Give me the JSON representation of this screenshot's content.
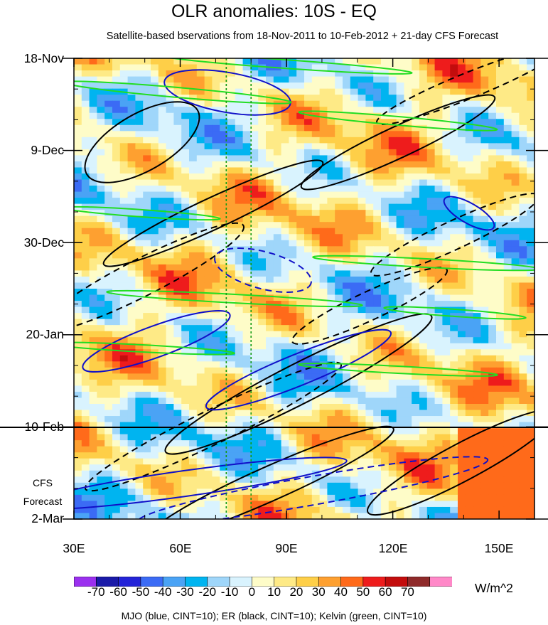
{
  "chart_data": {
    "type": "heatmap",
    "title": "OLR anomalies: 10S - EQ",
    "subtitle": "Satellite-based bservations from 18-Nov-2011 to 10-Feb-2012 + 21-day CFS Forecast",
    "y_tick_labels": [
      "18-Nov",
      "9-Dec",
      "30-Dec",
      "20-Jan",
      "10-Feb",
      "2-Mar"
    ],
    "x_tick_labels": [
      "30E",
      "60E",
      "90E",
      "120E",
      "150E"
    ],
    "x_ticks": [
      30,
      60,
      90,
      120,
      150
    ],
    "xlim": [
      30,
      160
    ],
    "forecast_label": [
      "CFS",
      "Forecast"
    ],
    "forecast_start": "10-Feb",
    "colorbar": {
      "levels": [
        "-70",
        "-60",
        "-50",
        "-40",
        "-30",
        "-20",
        "-10",
        "0",
        "10",
        "20",
        "30",
        "40",
        "50",
        "60",
        "70"
      ],
      "colors": [
        "#9b30ef",
        "#1a1aa8",
        "#2424d8",
        "#3b6bf5",
        "#4aa3f5",
        "#00b4f0",
        "#9fd6fa",
        "#d9f3fe",
        "#fefcc8",
        "#feea86",
        "#fecf48",
        "#fea030",
        "#ff6a1a",
        "#ee1c1c",
        "#c30d0d",
        "#8f2a2a",
        "#ff88c8"
      ],
      "units": "W/m^2"
    },
    "reference_lines_lon": [
      73,
      80
    ],
    "footer": "MJO (blue, CINT=10); ER (black, CINT=10); Kelvin (green, CINT=10)",
    "contour_series": [
      {
        "name": "MJO",
        "color": "#1010c8"
      },
      {
        "name": "ER",
        "color": "#000000"
      },
      {
        "name": "Kelvin",
        "color": "#22dd22"
      }
    ]
  }
}
